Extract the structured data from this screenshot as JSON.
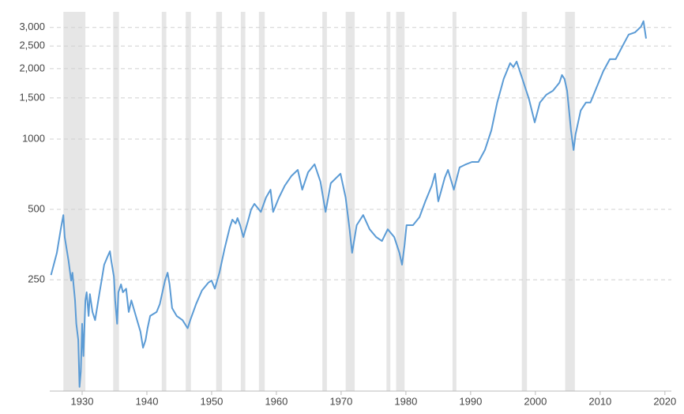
{
  "chart_data": {
    "type": "line",
    "log_scale": true,
    "grid": true,
    "xlim": [
      1925,
      2021
    ],
    "ylim": [
      83.5,
      3500
    ],
    "xticks": [
      1930,
      1940,
      1950,
      1960,
      1970,
      1980,
      1990,
      2000,
      2010,
      2020
    ],
    "yticks": [
      250,
      500,
      1000,
      {
        "value": 1500,
        "label": "1,500"
      },
      {
        "value": 2000,
        "label": "2,000"
      },
      {
        "value": 2500,
        "label": "2,500"
      },
      {
        "value": 3000,
        "label": "3,000"
      }
    ],
    "shaded_periods": [
      [
        1927.1,
        1930.5
      ],
      [
        1934.8,
        1935.7
      ],
      [
        1942.3,
        1943.0
      ],
      [
        1946.0,
        1946.8
      ],
      [
        1950.7,
        1951.6
      ],
      [
        1954.5,
        1955.2
      ],
      [
        1957.3,
        1958.2
      ],
      [
        1967.1,
        1967.8
      ],
      [
        1970.7,
        1972.1
      ],
      [
        1977.0,
        1977.6
      ],
      [
        1978.5,
        1979.8
      ],
      [
        1987.2,
        1987.8
      ],
      [
        1997.9,
        1998.7
      ],
      [
        2004.6,
        2006.1
      ]
    ],
    "shade_color": "#e6e6e6",
    "series": [
      {
        "color": "#5b9bd5",
        "x": [
          1925.2,
          1926.1,
          1926.7,
          1927.1,
          1927.3,
          1927.9,
          1928.3,
          1928.5,
          1928.9,
          1929.1,
          1929.4,
          1929.6,
          1929.8,
          1930.0,
          1930.2,
          1930.5,
          1930.7,
          1931.0,
          1931.2,
          1931.6,
          1932.0,
          1932.7,
          1933.0,
          1933.4,
          1933.9,
          1934.3,
          1934.5,
          1934.9,
          1935.1,
          1935.4,
          1935.6,
          1936.0,
          1936.3,
          1936.8,
          1937.2,
          1937.6,
          1938.3,
          1939.0,
          1939.4,
          1939.8,
          1940.1,
          1940.5,
          1941.5,
          1942.0,
          1942.4,
          1942.8,
          1943.2,
          1943.5,
          1943.9,
          1944.6,
          1945.5,
          1946.3,
          1946.7,
          1947.6,
          1948.5,
          1949.5,
          1950.0,
          1950.5,
          1951.2,
          1952.0,
          1952.8,
          1953.2,
          1953.7,
          1954.0,
          1954.4,
          1954.9,
          1955.6,
          1956.1,
          1956.6,
          1957.6,
          1958.4,
          1959.1,
          1959.5,
          1960.4,
          1961.3,
          1962.3,
          1963.3,
          1964.0,
          1964.9,
          1965.9,
          1966.8,
          1967.6,
          1968.4,
          1969.9,
          1970.7,
          1971.3,
          1971.7,
          1972.4,
          1973.4,
          1974.4,
          1975.4,
          1976.3,
          1977.2,
          1978.2,
          1979.0,
          1979.4,
          1979.8,
          1980.1,
          1981.1,
          1982.1,
          1983.0,
          1984.0,
          1984.5,
          1985.0,
          1986.0,
          1986.5,
          1987.4,
          1988.3,
          1989.3,
          1990.2,
          1991.2,
          1992.2,
          1993.2,
          1994.1,
          1995.1,
          1996.1,
          1996.6,
          1997.1,
          1998.0,
          1999.0,
          1999.9,
          2000.7,
          2001.7,
          2002.7,
          2003.7,
          2004.1,
          2004.5,
          2004.9,
          2005.2,
          2005.5,
          2005.9,
          2006.2,
          2007.0,
          2007.8,
          2008.5,
          2009.5,
          2010.5,
          2011.5,
          2012.4,
          2013.4,
          2014.4,
          2015.4,
          2016.3,
          2016.7,
          2017.1
        ],
        "values": [
          262,
          326,
          411,
          473,
          381,
          301,
          248,
          268,
          204,
          162,
          138,
          87,
          101,
          162,
          118,
          204,
          221,
          175,
          217,
          182,
          168,
          221,
          248,
          290,
          313,
          331,
          301,
          258,
          204,
          162,
          221,
          239,
          221,
          229,
          182,
          204,
          175,
          150,
          128,
          138,
          155,
          175,
          182,
          197,
          221,
          248,
          268,
          239,
          189,
          175,
          168,
          155,
          168,
          197,
          225,
          243,
          248,
          229,
          268,
          339,
          418,
          452,
          435,
          459,
          428,
          381,
          445,
          500,
          528,
          488,
          562,
          607,
          488,
          562,
          632,
          694,
          738,
          607,
          721,
          780,
          657,
          488,
          647,
          711,
          562,
          411,
          326,
          428,
          473,
          411,
          381,
          366,
          411,
          381,
          326,
          290,
          352,
          428,
          428,
          463,
          541,
          632,
          711,
          541,
          683,
          738,
          607,
          756,
          780,
          798,
          798,
          897,
          1089,
          1432,
          1807,
          2112,
          2031,
          2145,
          1807,
          1488,
          1178,
          1432,
          1548,
          1609,
          1740,
          1879,
          1807,
          1609,
          1324,
          1089,
          897,
          1048,
          1324,
          1432,
          1432,
          1673,
          1954,
          2196,
          2196,
          2481,
          2797,
          2862,
          3023,
          3193,
          2690
        ]
      }
    ]
  }
}
